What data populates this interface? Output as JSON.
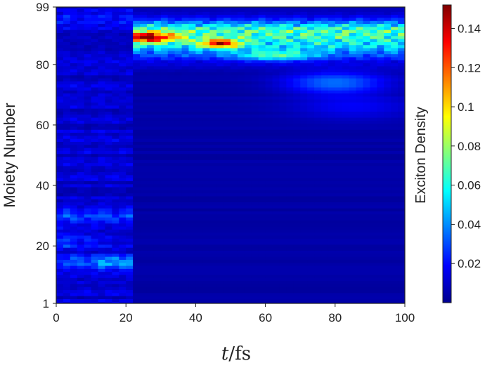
{
  "chart_data": {
    "type": "heatmap",
    "xlabel_italic": "t",
    "xlabel_unit": "/fs",
    "ylabel": "Moiety Number",
    "colorbar_label": "Exciton Density",
    "colormap": "jet",
    "xlim": [
      0,
      100
    ],
    "ylim": [
      1,
      99
    ],
    "x_ticks": [
      0,
      20,
      40,
      60,
      80,
      100
    ],
    "x_tick_labels": [
      "0",
      "20",
      "40",
      "60",
      "80",
      "100"
    ],
    "y_ticks": [
      1,
      20,
      40,
      60,
      80,
      99
    ],
    "y_tick_labels": [
      "1",
      "20",
      "40",
      "60",
      "80",
      "99"
    ],
    "colorbar_range": [
      0,
      0.152
    ],
    "colorbar_ticks": [
      0.02,
      0.04,
      0.06,
      0.08,
      0.1,
      0.12,
      0.14
    ],
    "colorbar_tick_labels": [
      "0.02",
      "0.04",
      "0.06",
      "0.08",
      "0.1",
      "0.12",
      "0.14"
    ],
    "excitation_switch_time": 23,
    "features": [
      {
        "description": "initial diffuse density",
        "t_range": [
          0,
          23
        ],
        "moiety_range": [
          5,
          99
        ],
        "peak_moieties": [
          14,
          16,
          22,
          30
        ],
        "peak_value": 0.045
      },
      {
        "description": "excitation localized on upper moieties",
        "t_range": [
          23,
          100
        ],
        "moiety_range": [
          70,
          96
        ],
        "peak_moieties": [
          87,
          89,
          91
        ],
        "peak_value": 0.152
      }
    ]
  }
}
